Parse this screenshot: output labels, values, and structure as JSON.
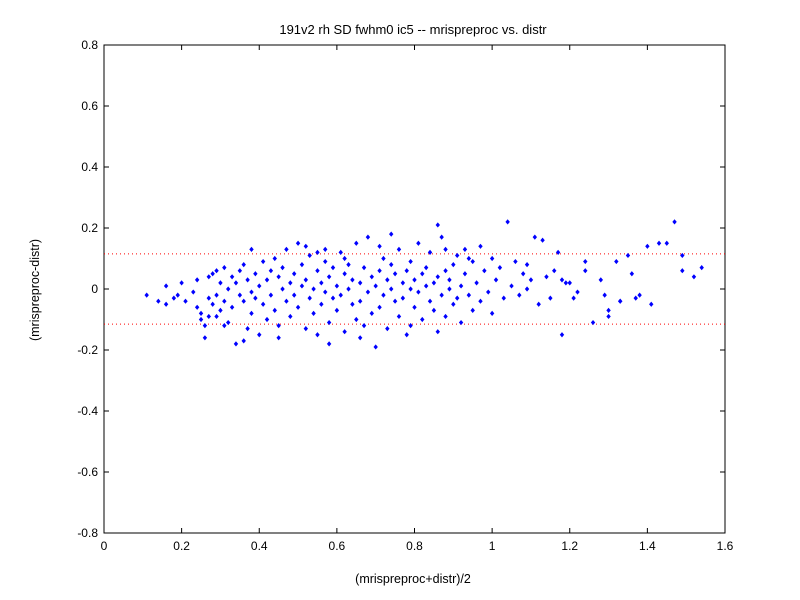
{
  "chart_data": {
    "type": "scatter",
    "title": "191v2 rh SD fwhm0 ic5 -- mrispreproc vs. distr",
    "xlabel": "(mrispreproc+distr)/2",
    "ylabel": "(mrispreproc-distr)",
    "xlim": [
      0,
      1.6
    ],
    "ylim": [
      -0.8,
      0.8
    ],
    "xticks": [
      "0",
      "0.2",
      "0.4",
      "0.6",
      "0.8",
      "1",
      "1.2",
      "1.4",
      "1.6"
    ],
    "yticks": [
      "-0.8",
      "-0.6",
      "-0.4",
      "-0.2",
      "0",
      "0.2",
      "0.4",
      "0.6",
      "0.8"
    ],
    "grid": false,
    "reference_lines": [
      {
        "y": 0.115,
        "style": "dotted",
        "color": "#ff0000"
      },
      {
        "y": -0.115,
        "style": "dotted",
        "color": "#ff0000"
      }
    ],
    "marker_color": "#0000ff",
    "series": [
      {
        "points": [
          [
            0.11,
            -0.02
          ],
          [
            0.14,
            -0.04
          ],
          [
            0.16,
            0.01
          ],
          [
            0.16,
            -0.05
          ],
          [
            0.18,
            -0.03
          ],
          [
            0.19,
            -0.02
          ],
          [
            0.2,
            0.02
          ],
          [
            0.21,
            -0.04
          ],
          [
            0.23,
            -0.01
          ],
          [
            0.24,
            -0.06
          ],
          [
            0.25,
            -0.1
          ],
          [
            0.25,
            -0.08
          ],
          [
            0.26,
            -0.12
          ],
          [
            0.26,
            -0.16
          ],
          [
            0.27,
            0.04
          ],
          [
            0.27,
            -0.03
          ],
          [
            0.28,
            0.05
          ],
          [
            0.28,
            -0.05
          ],
          [
            0.29,
            -0.02
          ],
          [
            0.29,
            -0.09
          ],
          [
            0.3,
            0.02
          ],
          [
            0.3,
            -0.07
          ],
          [
            0.31,
            0.07
          ],
          [
            0.31,
            -0.04
          ],
          [
            0.32,
            0.0
          ],
          [
            0.32,
            -0.11
          ],
          [
            0.33,
            0.04
          ],
          [
            0.33,
            -0.06
          ],
          [
            0.34,
            0.02
          ],
          [
            0.34,
            -0.18
          ],
          [
            0.35,
            0.06
          ],
          [
            0.35,
            -0.02
          ],
          [
            0.36,
            0.08
          ],
          [
            0.36,
            -0.04
          ],
          [
            0.37,
            0.03
          ],
          [
            0.37,
            -0.13
          ],
          [
            0.38,
            -0.01
          ],
          [
            0.38,
            -0.08
          ],
          [
            0.39,
            0.05
          ],
          [
            0.39,
            -0.03
          ],
          [
            0.4,
            0.01
          ],
          [
            0.4,
            -0.15
          ],
          [
            0.41,
            0.09
          ],
          [
            0.41,
            -0.05
          ],
          [
            0.42,
            0.03
          ],
          [
            0.42,
            -0.1
          ],
          [
            0.43,
            -0.02
          ],
          [
            0.43,
            0.06
          ],
          [
            0.44,
            0.1
          ],
          [
            0.44,
            -0.07
          ],
          [
            0.45,
            0.04
          ],
          [
            0.45,
            -0.12
          ],
          [
            0.46,
            0.0
          ],
          [
            0.46,
            0.07
          ],
          [
            0.47,
            -0.04
          ],
          [
            0.47,
            0.13
          ],
          [
            0.48,
            0.02
          ],
          [
            0.48,
            -0.09
          ],
          [
            0.49,
            0.05
          ],
          [
            0.49,
            -0.02
          ],
          [
            0.5,
            0.15
          ],
          [
            0.5,
            -0.06
          ],
          [
            0.51,
            0.01
          ],
          [
            0.51,
            0.08
          ],
          [
            0.52,
            -0.13
          ],
          [
            0.52,
            0.03
          ],
          [
            0.53,
            -0.03
          ],
          [
            0.53,
            0.11
          ],
          [
            0.54,
            0.0
          ],
          [
            0.54,
            -0.08
          ],
          [
            0.55,
            0.06
          ],
          [
            0.55,
            -0.15
          ],
          [
            0.56,
            0.02
          ],
          [
            0.56,
            -0.05
          ],
          [
            0.57,
            0.09
          ],
          [
            0.57,
            -0.01
          ],
          [
            0.58,
            0.04
          ],
          [
            0.58,
            -0.11
          ],
          [
            0.59,
            -0.03
          ],
          [
            0.59,
            0.07
          ],
          [
            0.6,
            0.01
          ],
          [
            0.6,
            -0.07
          ],
          [
            0.61,
            0.12
          ],
          [
            0.61,
            -0.02
          ],
          [
            0.62,
            0.05
          ],
          [
            0.62,
            -0.14
          ],
          [
            0.63,
            0.0
          ],
          [
            0.63,
            0.08
          ],
          [
            0.64,
            -0.05
          ],
          [
            0.64,
            0.03
          ],
          [
            0.65,
            -0.1
          ],
          [
            0.65,
            0.15
          ],
          [
            0.66,
            0.02
          ],
          [
            0.66,
            -0.04
          ],
          [
            0.67,
            0.07
          ],
          [
            0.67,
            -0.12
          ],
          [
            0.68,
            0.17
          ],
          [
            0.68,
            -0.01
          ],
          [
            0.69,
            0.04
          ],
          [
            0.69,
            -0.08
          ],
          [
            0.7,
            -0.19
          ],
          [
            0.7,
            0.01
          ],
          [
            0.71,
            0.06
          ],
          [
            0.71,
            -0.06
          ],
          [
            0.72,
            0.1
          ],
          [
            0.72,
            -0.02
          ],
          [
            0.73,
            0.03
          ],
          [
            0.73,
            -0.13
          ],
          [
            0.74,
            0.0
          ],
          [
            0.74,
            0.08
          ],
          [
            0.75,
            -0.04
          ],
          [
            0.75,
            0.05
          ],
          [
            0.76,
            0.13
          ],
          [
            0.76,
            -0.09
          ],
          [
            0.77,
            0.02
          ],
          [
            0.77,
            -0.03
          ],
          [
            0.78,
            0.06
          ],
          [
            0.78,
            -0.15
          ],
          [
            0.79,
            0.0
          ],
          [
            0.79,
            0.09
          ],
          [
            0.8,
            -0.06
          ],
          [
            0.8,
            0.03
          ],
          [
            0.81,
            0.15
          ],
          [
            0.81,
            -0.01
          ],
          [
            0.82,
            0.05
          ],
          [
            0.82,
            -0.1
          ],
          [
            0.83,
            0.01
          ],
          [
            0.83,
            0.07
          ],
          [
            0.84,
            -0.04
          ],
          [
            0.84,
            0.12
          ],
          [
            0.85,
            0.02
          ],
          [
            0.85,
            -0.07
          ],
          [
            0.86,
            0.04
          ],
          [
            0.86,
            -0.14
          ],
          [
            0.87,
            0.17
          ],
          [
            0.87,
            -0.02
          ],
          [
            0.88,
            0.06
          ],
          [
            0.88,
            -0.09
          ],
          [
            0.89,
            0.0
          ],
          [
            0.89,
            0.03
          ],
          [
            0.9,
            -0.05
          ],
          [
            0.9,
            0.08
          ],
          [
            0.91,
            0.11
          ],
          [
            0.91,
            -0.03
          ],
          [
            0.92,
            0.01
          ],
          [
            0.92,
            -0.11
          ],
          [
            0.93,
            0.05
          ],
          [
            0.94,
            -0.02
          ],
          [
            0.95,
            0.09
          ],
          [
            0.95,
            -0.07
          ],
          [
            0.96,
            0.02
          ],
          [
            0.97,
            0.14
          ],
          [
            0.97,
            -0.04
          ],
          [
            0.98,
            0.06
          ],
          [
            0.99,
            -0.01
          ],
          [
            1.0,
            0.1
          ],
          [
            1.0,
            -0.08
          ],
          [
            1.01,
            0.03
          ],
          [
            1.02,
            0.07
          ],
          [
            1.03,
            -0.03
          ],
          [
            1.04,
            0.22
          ],
          [
            1.05,
            0.01
          ],
          [
            1.06,
            0.09
          ],
          [
            1.07,
            -0.02
          ],
          [
            1.08,
            0.05
          ],
          [
            1.09,
            0.0
          ],
          [
            1.1,
            0.03
          ],
          [
            1.11,
            0.17
          ],
          [
            1.12,
            -0.05
          ],
          [
            1.13,
            0.16
          ],
          [
            1.14,
            0.04
          ],
          [
            1.15,
            -0.03
          ],
          [
            1.16,
            0.06
          ],
          [
            1.18,
            0.03
          ],
          [
            1.18,
            -0.15
          ],
          [
            1.2,
            0.02
          ],
          [
            1.21,
            -0.03
          ],
          [
            1.24,
            0.09
          ],
          [
            1.24,
            0.06
          ],
          [
            1.26,
            -0.11
          ],
          [
            1.28,
            0.03
          ],
          [
            1.29,
            -0.02
          ],
          [
            1.3,
            -0.07
          ],
          [
            1.32,
            0.09
          ],
          [
            1.33,
            -0.04
          ],
          [
            1.35,
            0.11
          ],
          [
            1.36,
            0.05
          ],
          [
            1.37,
            -0.03
          ],
          [
            1.38,
            -0.02
          ],
          [
            1.4,
            0.14
          ],
          [
            1.41,
            -0.05
          ],
          [
            1.43,
            0.15
          ],
          [
            1.45,
            0.15
          ],
          [
            1.47,
            0.22
          ],
          [
            1.49,
            0.06
          ],
          [
            1.49,
            0.11
          ],
          [
            1.52,
            0.04
          ],
          [
            1.54,
            0.07
          ],
          [
            1.33,
            -0.04
          ],
          [
            1.3,
            -0.09
          ],
          [
            1.22,
            -0.01
          ],
          [
            1.19,
            0.02
          ],
          [
            1.17,
            0.12
          ],
          [
            1.09,
            0.08
          ],
          [
            0.93,
            0.13
          ],
          [
            0.86,
            0.21
          ],
          [
            0.74,
            0.18
          ],
          [
            0.62,
            0.1
          ],
          [
            0.58,
            -0.18
          ],
          [
            0.55,
            0.12
          ],
          [
            0.52,
            0.14
          ],
          [
            0.45,
            -0.16
          ],
          [
            0.38,
            0.13
          ],
          [
            0.36,
            -0.17
          ],
          [
            0.31,
            -0.12
          ],
          [
            0.29,
            0.06
          ],
          [
            0.27,
            -0.09
          ],
          [
            0.24,
            0.03
          ],
          [
            0.57,
            0.13
          ],
          [
            0.66,
            -0.16
          ],
          [
            0.71,
            0.14
          ],
          [
            0.79,
            -0.12
          ],
          [
            0.88,
            0.13
          ],
          [
            0.94,
            0.1
          ]
        ]
      }
    ]
  }
}
